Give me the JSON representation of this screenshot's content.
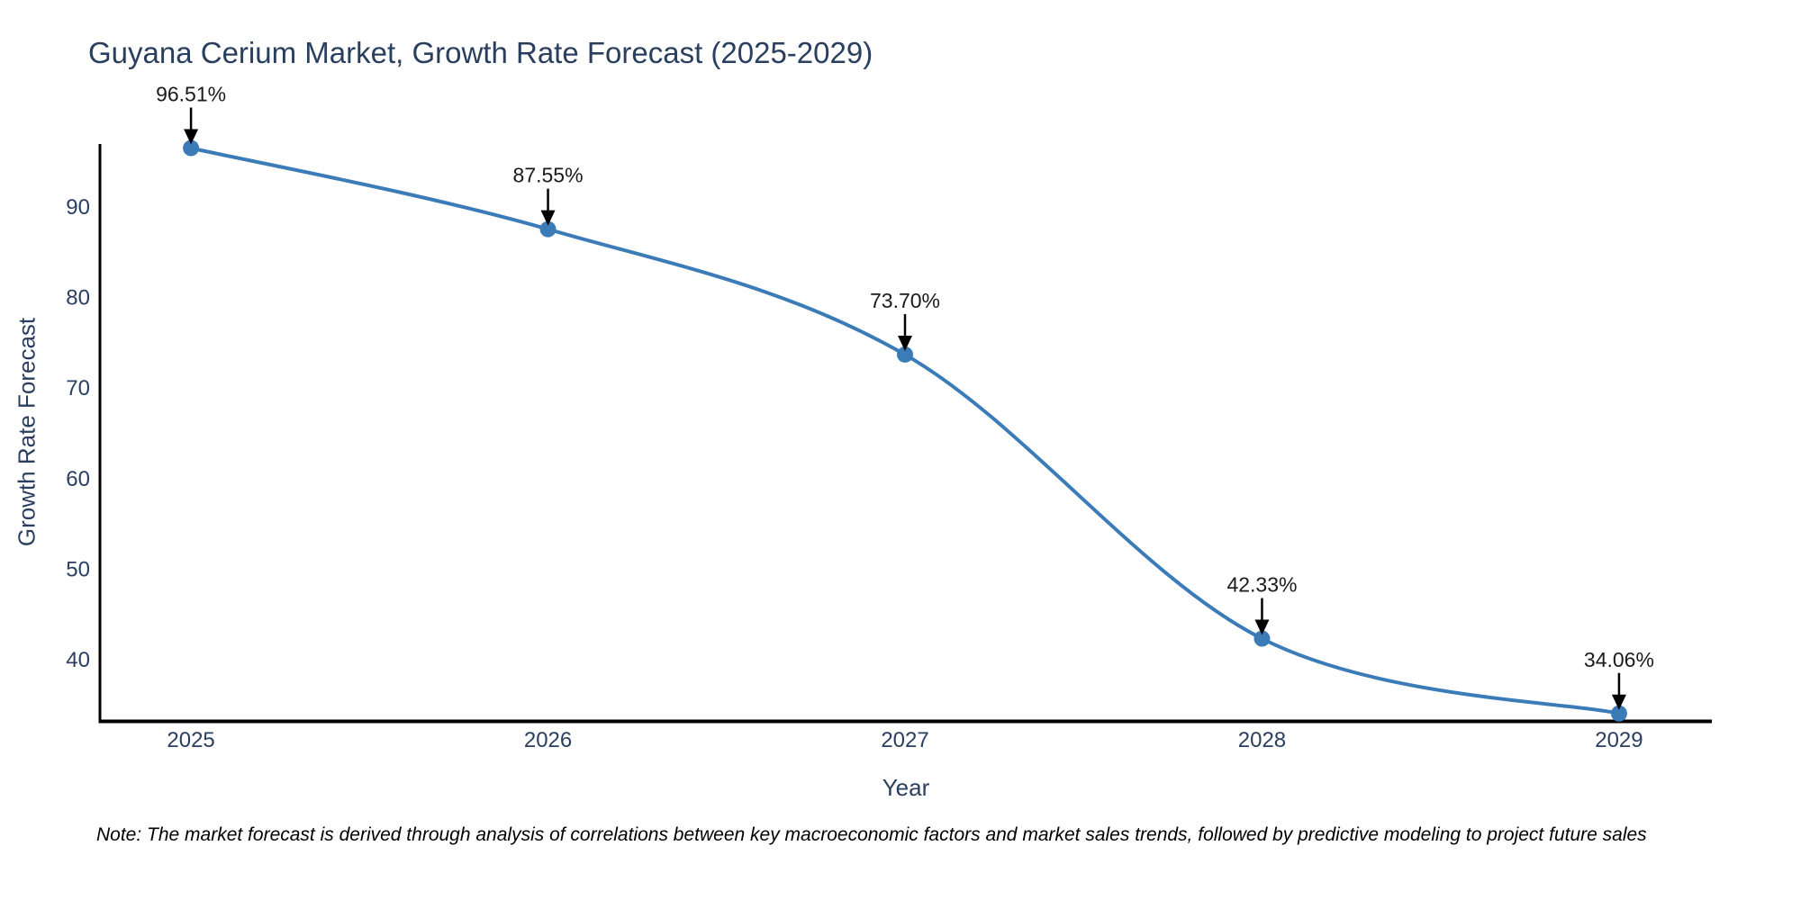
{
  "chart": {
    "title": "Guyana Cerium Market, Growth Rate Forecast (2025-2029)",
    "xlabel": "Year",
    "ylabel": "Growth Rate Forecast",
    "note": "Note: The market forecast is derived through analysis of correlations between key macroeconomic factors and market sales trends, followed by predictive modeling to project future sales",
    "colors": {
      "line": "#3b7cb8",
      "marker": "#3b7cb8",
      "title_text": "#2a3f5f",
      "axis_text": "#2a3f5f",
      "axis_line": "#000000",
      "annotation_text": "#1a1a1a",
      "arrow": "#000000",
      "note_text": "#000000",
      "background": "#ffffff"
    }
  },
  "chart_data": {
    "type": "line",
    "title": "Guyana Cerium Market, Growth Rate Forecast (2025-2029)",
    "xlabel": "Year",
    "ylabel": "Growth Rate Forecast",
    "x": [
      2025,
      2026,
      2027,
      2028,
      2029
    ],
    "values": [
      96.51,
      87.55,
      73.7,
      42.33,
      34.06
    ],
    "labels": [
      "96.51%",
      "87.55%",
      "73.70%",
      "42.33%",
      "34.06%"
    ],
    "x_ticks": [
      "2025",
      "2026",
      "2027",
      "2028",
      "2029"
    ],
    "y_ticks": [
      40,
      50,
      60,
      70,
      80,
      90
    ],
    "xlim": [
      2024.745,
      2029.26
    ],
    "ylim": [
      33.24,
      96.96
    ],
    "line_shape": "spline",
    "grid": false,
    "legend_position": "none",
    "annotations_have_arrows": true
  }
}
